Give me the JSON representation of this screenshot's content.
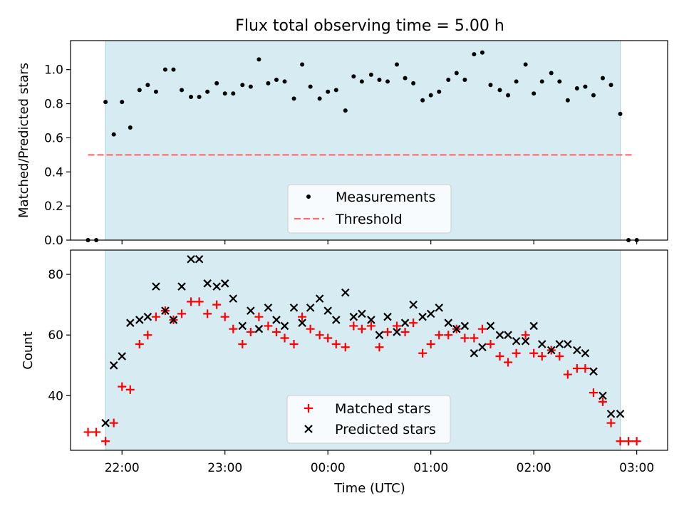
{
  "chart_data": [
    {
      "type": "scatter",
      "title": "Flux total observing time = 5.00 h",
      "ylabel": "Matched/Predicted stars",
      "xlabel": "",
      "xlim": [
        -0.5,
        5.3
      ],
      "ylim": [
        0.0,
        1.17
      ],
      "yticks": [
        0.0,
        0.2,
        0.4,
        0.6,
        0.8,
        1.0
      ],
      "ytick_labels": [
        "0.0",
        "0.2",
        "0.4",
        "0.6",
        "0.8",
        "1.0"
      ],
      "observing_window": [
        -0.16,
        4.84
      ],
      "threshold": {
        "value": 0.5,
        "x_range": [
          -0.33,
          4.98
        ],
        "color": "#ff7070"
      },
      "legend": {
        "placement": "lower-center",
        "entries": [
          "Measurements",
          "Threshold"
        ]
      },
      "series": [
        {
          "name": "Measurements",
          "marker": "dot",
          "color": "#000000",
          "x": [
            -0.33,
            -0.25,
            -0.16,
            -0.08,
            0.0,
            0.08,
            0.17,
            0.25,
            0.33,
            0.42,
            0.5,
            0.58,
            0.67,
            0.75,
            0.83,
            0.92,
            1.0,
            1.08,
            1.17,
            1.25,
            1.33,
            1.42,
            1.5,
            1.58,
            1.67,
            1.75,
            1.83,
            1.92,
            2.0,
            2.08,
            2.17,
            2.25,
            2.33,
            2.42,
            2.5,
            2.58,
            2.67,
            2.75,
            2.83,
            2.92,
            3.0,
            3.08,
            3.17,
            3.25,
            3.33,
            3.42,
            3.5,
            3.58,
            3.67,
            3.75,
            3.83,
            3.92,
            4.0,
            4.08,
            4.17,
            4.25,
            4.33,
            4.42,
            4.5,
            4.58,
            4.67,
            4.75,
            4.84,
            4.92,
            5.0
          ],
          "values": [
            0.0,
            0.0,
            0.81,
            0.62,
            0.81,
            0.66,
            0.88,
            0.91,
            0.87,
            1.0,
            1.0,
            0.88,
            0.84,
            0.84,
            0.87,
            0.92,
            0.86,
            0.86,
            0.91,
            0.9,
            1.06,
            0.92,
            0.94,
            0.93,
            0.83,
            1.03,
            0.9,
            0.83,
            0.87,
            0.88,
            0.76,
            0.96,
            0.93,
            0.97,
            0.94,
            0.93,
            1.03,
            0.95,
            0.92,
            0.82,
            0.85,
            0.87,
            0.94,
            0.98,
            0.94,
            1.09,
            1.1,
            0.91,
            0.88,
            0.85,
            0.93,
            1.03,
            0.86,
            0.93,
            0.98,
            0.93,
            0.82,
            0.89,
            0.9,
            0.85,
            0.95,
            0.91,
            0.74,
            0.0,
            0.0
          ]
        }
      ]
    },
    {
      "type": "scatter",
      "title": "",
      "ylabel": "Count",
      "xlabel": "Time (UTC)",
      "xlim": [
        -0.5,
        5.3
      ],
      "ylim": [
        22,
        88
      ],
      "yticks": [
        40,
        60,
        80
      ],
      "ytick_labels": [
        "40",
        "60",
        "80"
      ],
      "xticks": [
        0,
        1,
        2,
        3,
        4,
        5
      ],
      "xtick_labels": [
        "22:00",
        "23:00",
        "00:00",
        "01:00",
        "02:00",
        "03:00"
      ],
      "observing_window": [
        -0.16,
        4.84
      ],
      "legend": {
        "placement": "lower-center",
        "entries": [
          "Matched stars",
          "Predicted stars"
        ]
      },
      "series": [
        {
          "name": "Matched stars",
          "marker": "plus",
          "color": "#ff0000",
          "x": [
            -0.33,
            -0.25,
            -0.16,
            -0.08,
            0.0,
            0.08,
            0.17,
            0.25,
            0.33,
            0.42,
            0.5,
            0.58,
            0.67,
            0.75,
            0.83,
            0.92,
            1.0,
            1.08,
            1.17,
            1.25,
            1.33,
            1.42,
            1.5,
            1.58,
            1.67,
            1.75,
            1.83,
            1.92,
            2.0,
            2.08,
            2.17,
            2.25,
            2.33,
            2.42,
            2.5,
            2.58,
            2.67,
            2.75,
            2.83,
            2.92,
            3.0,
            3.08,
            3.17,
            3.25,
            3.33,
            3.42,
            3.5,
            3.58,
            3.67,
            3.75,
            3.83,
            3.92,
            4.0,
            4.08,
            4.17,
            4.25,
            4.33,
            4.42,
            4.5,
            4.58,
            4.67,
            4.75,
            4.84,
            4.92,
            5.0
          ],
          "values": [
            28,
            28,
            25,
            31,
            43,
            42,
            57,
            60,
            66,
            68,
            65,
            67,
            71,
            71,
            67,
            70,
            66,
            62,
            57,
            61,
            66,
            63,
            61,
            59,
            57,
            66,
            62,
            60,
            59,
            57,
            56,
            63,
            62,
            63,
            56,
            61,
            63,
            61,
            64,
            54,
            57,
            60,
            60,
            62,
            59,
            59,
            62,
            57,
            53,
            51,
            54,
            60,
            54,
            53,
            55,
            53,
            47,
            49,
            49,
            41,
            38,
            31,
            25,
            25,
            25
          ]
        },
        {
          "name": "Predicted stars",
          "marker": "x",
          "color": "#000000",
          "x": [
            -0.16,
            -0.08,
            0.0,
            0.08,
            0.17,
            0.25,
            0.33,
            0.42,
            0.5,
            0.58,
            0.67,
            0.75,
            0.83,
            0.92,
            1.0,
            1.08,
            1.17,
            1.25,
            1.33,
            1.42,
            1.5,
            1.58,
            1.67,
            1.75,
            1.83,
            1.92,
            2.0,
            2.08,
            2.17,
            2.25,
            2.33,
            2.42,
            2.5,
            2.58,
            2.67,
            2.75,
            2.83,
            2.92,
            3.0,
            3.08,
            3.17,
            3.25,
            3.33,
            3.42,
            3.5,
            3.58,
            3.67,
            3.75,
            3.83,
            3.92,
            4.0,
            4.08,
            4.17,
            4.25,
            4.33,
            4.42,
            4.5,
            4.58,
            4.67,
            4.75,
            4.84
          ],
          "values": [
            31,
            50,
            53,
            64,
            65,
            66,
            76,
            68,
            65,
            76,
            85,
            85,
            77,
            76,
            77,
            72,
            63,
            68,
            62,
            69,
            65,
            63,
            69,
            64,
            69,
            72,
            68,
            65,
            74,
            66,
            67,
            65,
            60,
            66,
            61,
            64,
            70,
            66,
            67,
            69,
            64,
            62,
            63,
            54,
            56,
            63,
            60,
            60,
            58,
            58,
            63,
            57,
            55,
            57,
            57,
            55,
            54,
            48,
            40,
            34,
            34
          ]
        }
      ]
    }
  ]
}
